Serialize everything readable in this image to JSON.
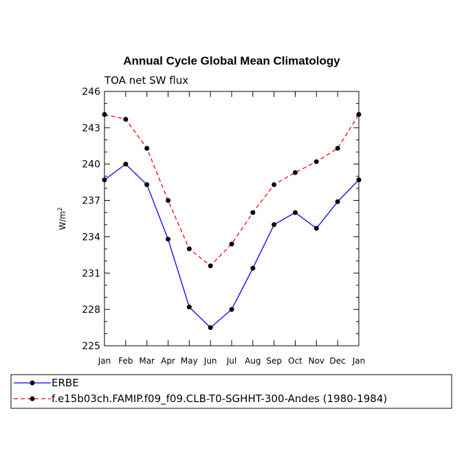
{
  "chart_data": {
    "type": "line",
    "title": "Annual Cycle Global Mean Climatology",
    "subtitle": "TOA net SW flux",
    "ylabel": "W/m",
    "ylabel_superscript": "2",
    "xlabel": "",
    "ylim": [
      225,
      246
    ],
    "yticks": [
      225,
      228,
      231,
      234,
      237,
      240,
      243,
      246
    ],
    "categories": [
      "Jan",
      "Feb",
      "Mar",
      "Apr",
      "May",
      "Jun",
      "Jul",
      "Aug",
      "Sep",
      "Oct",
      "Nov",
      "Dec",
      "Jan"
    ],
    "grid": false,
    "legend_placement": "bottom",
    "series": [
      {
        "name": "ERBE",
        "color": "#0000ff",
        "dashed": false,
        "values": [
          238.7,
          240.0,
          238.3,
          233.8,
          228.2,
          226.5,
          228.0,
          231.4,
          235.0,
          236.0,
          234.7,
          236.9,
          238.7
        ]
      },
      {
        "name": "f.e15b03ch.FAMIP.f09_f09.CLB-T0-SGHHT-300-Andes (1980-1984)",
        "color": "#ff0000",
        "dashed": true,
        "values": [
          244.1,
          243.7,
          241.3,
          237.0,
          233.0,
          231.6,
          233.4,
          236.0,
          238.3,
          239.3,
          240.2,
          241.3,
          244.1
        ]
      }
    ]
  }
}
